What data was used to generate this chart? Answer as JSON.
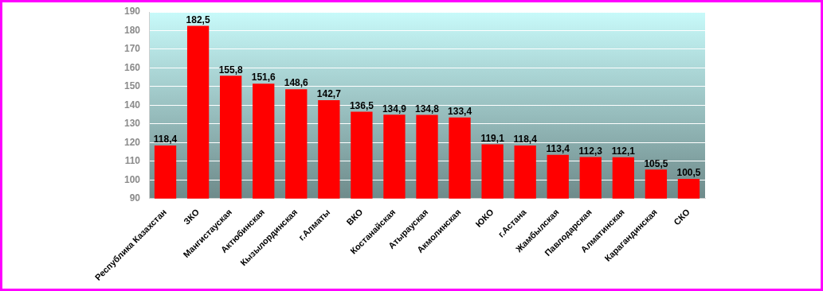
{
  "chart_data": {
    "type": "bar",
    "categories": [
      "Республика Казахстан",
      "ЗКО",
      "Мангистауская",
      "Актюбинская",
      "Кызылординская",
      "г.Алматы",
      "ВКО",
      "Костанайская",
      "Атырауская",
      "Акмолинская",
      "ЮКО",
      "г.Астана",
      "Жамбылская",
      "Павлодарская",
      "Алматинская",
      "Карагандинская",
      "СКО"
    ],
    "values": [
      118.4,
      182.5,
      155.8,
      151.6,
      148.6,
      142.7,
      136.5,
      134.9,
      134.8,
      133.4,
      119.1,
      118.4,
      113.4,
      112.3,
      112.1,
      105.5,
      100.5
    ],
    "value_labels": [
      "118,4",
      "182,5",
      "155,8",
      "151,6",
      "148,6",
      "142,7",
      "136,5",
      "134,9",
      "134,8",
      "133,4",
      "119,1",
      "118,4",
      "113,4",
      "112,3",
      "112,1",
      "105,5",
      "100,5"
    ],
    "color": "#ff0000",
    "ylim": [
      90,
      190
    ],
    "yticks": [
      90,
      100,
      110,
      120,
      130,
      140,
      150,
      160,
      170,
      180,
      190
    ],
    "grid": "y",
    "legend": false
  }
}
